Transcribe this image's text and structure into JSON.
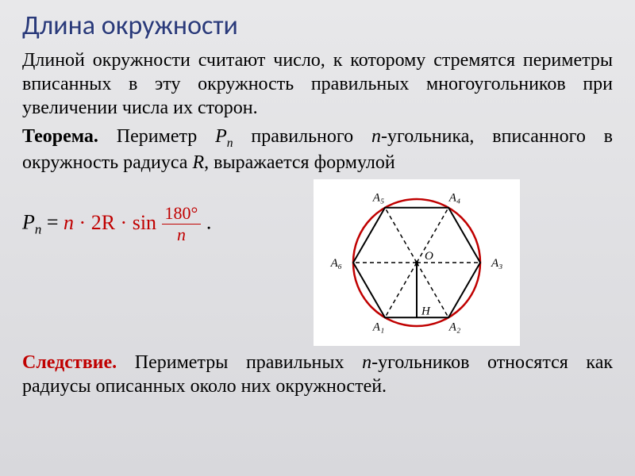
{
  "title": "Длина окружности",
  "definition": "Длиной окружности считают число, к которому стремятся периметры вписанных в эту окружность правильных многоугольников при увеличении числа их сторон.",
  "theorem_label": "Теорема.",
  "theorem_pre": "Периметр ",
  "theorem_P": "P",
  "theorem_n_sub": "n",
  "theorem_mid": " правильного ",
  "theorem_n_ital": "n",
  "theorem_tail": "-угольника, вписанного в окружность радиуса ",
  "theorem_R": "R",
  "theorem_end": ", выражается формулой",
  "formula": {
    "lhs_P": "P",
    "lhs_n": "n",
    "eq": " = ",
    "n": "n",
    "dot1": "·",
    "twoR": "2R",
    "dot2": "·",
    "sin": "sin",
    "num": "180°",
    "den": "n",
    "period": "."
  },
  "diagram": {
    "type": "inscribed-hexagon",
    "circle_color": "#c00000",
    "line_color": "#000000",
    "dash_pattern": "5,4",
    "background": "#ffffff",
    "center": "O",
    "foot": "H",
    "vertices": [
      "A₁",
      "A₂",
      "A₃",
      "A₄",
      "A₅",
      "A₆"
    ],
    "label_fontsize": 15,
    "radius": 80,
    "n_sides": 6
  },
  "corollary_label": "Следствие.",
  "corollary_pre": "Периметры правильных ",
  "corollary_n": "n",
  "corollary_tail": "-угольников относятся как радиусы описанных около них окружностей.",
  "colors": {
    "title": "#2a3a7a",
    "accent": "#c00000",
    "text": "#000000",
    "bg_top": "#e8e8ea",
    "bg_bottom": "#d8d8dc"
  },
  "fonts": {
    "title_family": "Calibri",
    "body_family": "Georgia",
    "title_size_pt": 26,
    "body_size_pt": 18
  }
}
